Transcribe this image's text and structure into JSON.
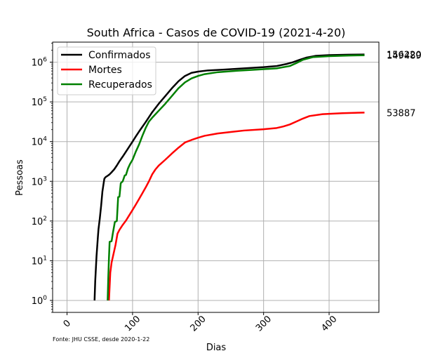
{
  "chart_data": {
    "type": "line",
    "title": "South Africa - Casos de COVID-19 (2021-4-20)",
    "xlabel": "Dias",
    "ylabel": "Pessoas",
    "yscale": "log",
    "xlim": [
      -22,
      476
    ],
    "ylim": [
      0.5,
      3200000
    ],
    "grid": true,
    "legend_position": "top-left",
    "x_ticks": [
      0,
      100,
      200,
      300,
      400
    ],
    "x_tick_labels": [
      "0",
      "100",
      "200",
      "300",
      "400"
    ],
    "y_ticks": [
      1,
      10,
      100,
      1000,
      10000,
      100000,
      1000000
    ],
    "y_tick_labels": [
      {
        "base": "10",
        "exp": "0"
      },
      {
        "base": "10",
        "exp": "1"
      },
      {
        "base": "10",
        "exp": "2"
      },
      {
        "base": "10",
        "exp": "3"
      },
      {
        "base": "10",
        "exp": "4"
      },
      {
        "base": "10",
        "exp": "5"
      },
      {
        "base": "10",
        "exp": "6"
      }
    ],
    "source": "Fonte: JHU CSSE, desde 2020-1-22",
    "series": [
      {
        "name": "Confirmados",
        "color": "#000000",
        "end_label": "1562204",
        "points": [
          [
            42,
            1
          ],
          [
            43,
            3
          ],
          [
            45,
            13
          ],
          [
            47,
            38
          ],
          [
            48,
            62
          ],
          [
            50,
            116
          ],
          [
            52,
            240
          ],
          [
            54,
            554
          ],
          [
            56,
            927
          ],
          [
            57,
            1170
          ],
          [
            59,
            1280
          ],
          [
            62,
            1380
          ],
          [
            65,
            1500
          ],
          [
            68,
            1690
          ],
          [
            72,
            2000
          ],
          [
            76,
            2500
          ],
          [
            80,
            3200
          ],
          [
            85,
            4200
          ],
          [
            90,
            5600
          ],
          [
            95,
            7500
          ],
          [
            100,
            10000
          ],
          [
            105,
            13500
          ],
          [
            110,
            18000
          ],
          [
            120,
            31000
          ],
          [
            130,
            55000
          ],
          [
            140,
            90000
          ],
          [
            150,
            140000
          ],
          [
            160,
            220000
          ],
          [
            170,
            330000
          ],
          [
            180,
            450000
          ],
          [
            190,
            540000
          ],
          [
            200,
            580000
          ],
          [
            215,
            620000
          ],
          [
            240,
            650000
          ],
          [
            270,
            700000
          ],
          [
            300,
            750000
          ],
          [
            320,
            800000
          ],
          [
            335,
            900000
          ],
          [
            345,
            1000000
          ],
          [
            355,
            1150000
          ],
          [
            365,
            1300000
          ],
          [
            380,
            1450000
          ],
          [
            400,
            1510000
          ],
          [
            430,
            1545000
          ],
          [
            454,
            1562204
          ]
        ]
      },
      {
        "name": "Mortes",
        "color": "#ff0000",
        "end_label": "53887",
        "points": [
          [
            64,
            1
          ],
          [
            66,
            5
          ],
          [
            68,
            9
          ],
          [
            71,
            15
          ],
          [
            74,
            25
          ],
          [
            77,
            48
          ],
          [
            80,
            60
          ],
          [
            85,
            80
          ],
          [
            90,
            103
          ],
          [
            95,
            140
          ],
          [
            100,
            190
          ],
          [
            105,
            260
          ],
          [
            110,
            360
          ],
          [
            115,
            500
          ],
          [
            120,
            700
          ],
          [
            125,
            1000
          ],
          [
            130,
            1500
          ],
          [
            135,
            2000
          ],
          [
            140,
            2500
          ],
          [
            150,
            3500
          ],
          [
            160,
            5000
          ],
          [
            170,
            7000
          ],
          [
            180,
            9500
          ],
          [
            190,
            11000
          ],
          [
            200,
            12500
          ],
          [
            210,
            14000
          ],
          [
            230,
            16000
          ],
          [
            250,
            17500
          ],
          [
            270,
            19000
          ],
          [
            300,
            20500
          ],
          [
            320,
            22000
          ],
          [
            330,
            24000
          ],
          [
            340,
            27000
          ],
          [
            350,
            32000
          ],
          [
            360,
            38000
          ],
          [
            370,
            44000
          ],
          [
            390,
            49000
          ],
          [
            420,
            52000
          ],
          [
            454,
            53887
          ]
        ]
      },
      {
        "name": "Recuperados",
        "color": "#008000",
        "end_label": "1494892",
        "points": [
          [
            62,
            1
          ],
          [
            63,
            4
          ],
          [
            64,
            12
          ],
          [
            65,
            30
          ],
          [
            68,
            31
          ],
          [
            70,
            50
          ],
          [
            73,
            95
          ],
          [
            76,
            100
          ],
          [
            78,
            400
          ],
          [
            80,
            410
          ],
          [
            82,
            900
          ],
          [
            85,
            1000
          ],
          [
            88,
            1400
          ],
          [
            90,
            1450
          ],
          [
            93,
            2100
          ],
          [
            96,
            2700
          ],
          [
            100,
            3500
          ],
          [
            105,
            5600
          ],
          [
            110,
            8500
          ],
          [
            115,
            14000
          ],
          [
            120,
            22000
          ],
          [
            125,
            32000
          ],
          [
            130,
            40000
          ],
          [
            140,
            60000
          ],
          [
            150,
            90000
          ],
          [
            160,
            140000
          ],
          [
            170,
            220000
          ],
          [
            180,
            310000
          ],
          [
            190,
            390000
          ],
          [
            200,
            450000
          ],
          [
            210,
            500000
          ],
          [
            230,
            560000
          ],
          [
            260,
            610000
          ],
          [
            290,
            650000
          ],
          [
            320,
            700000
          ],
          [
            340,
            800000
          ],
          [
            350,
            950000
          ],
          [
            360,
            1150000
          ],
          [
            375,
            1340000
          ],
          [
            400,
            1420000
          ],
          [
            430,
            1470000
          ],
          [
            454,
            1494892
          ]
        ]
      }
    ]
  }
}
